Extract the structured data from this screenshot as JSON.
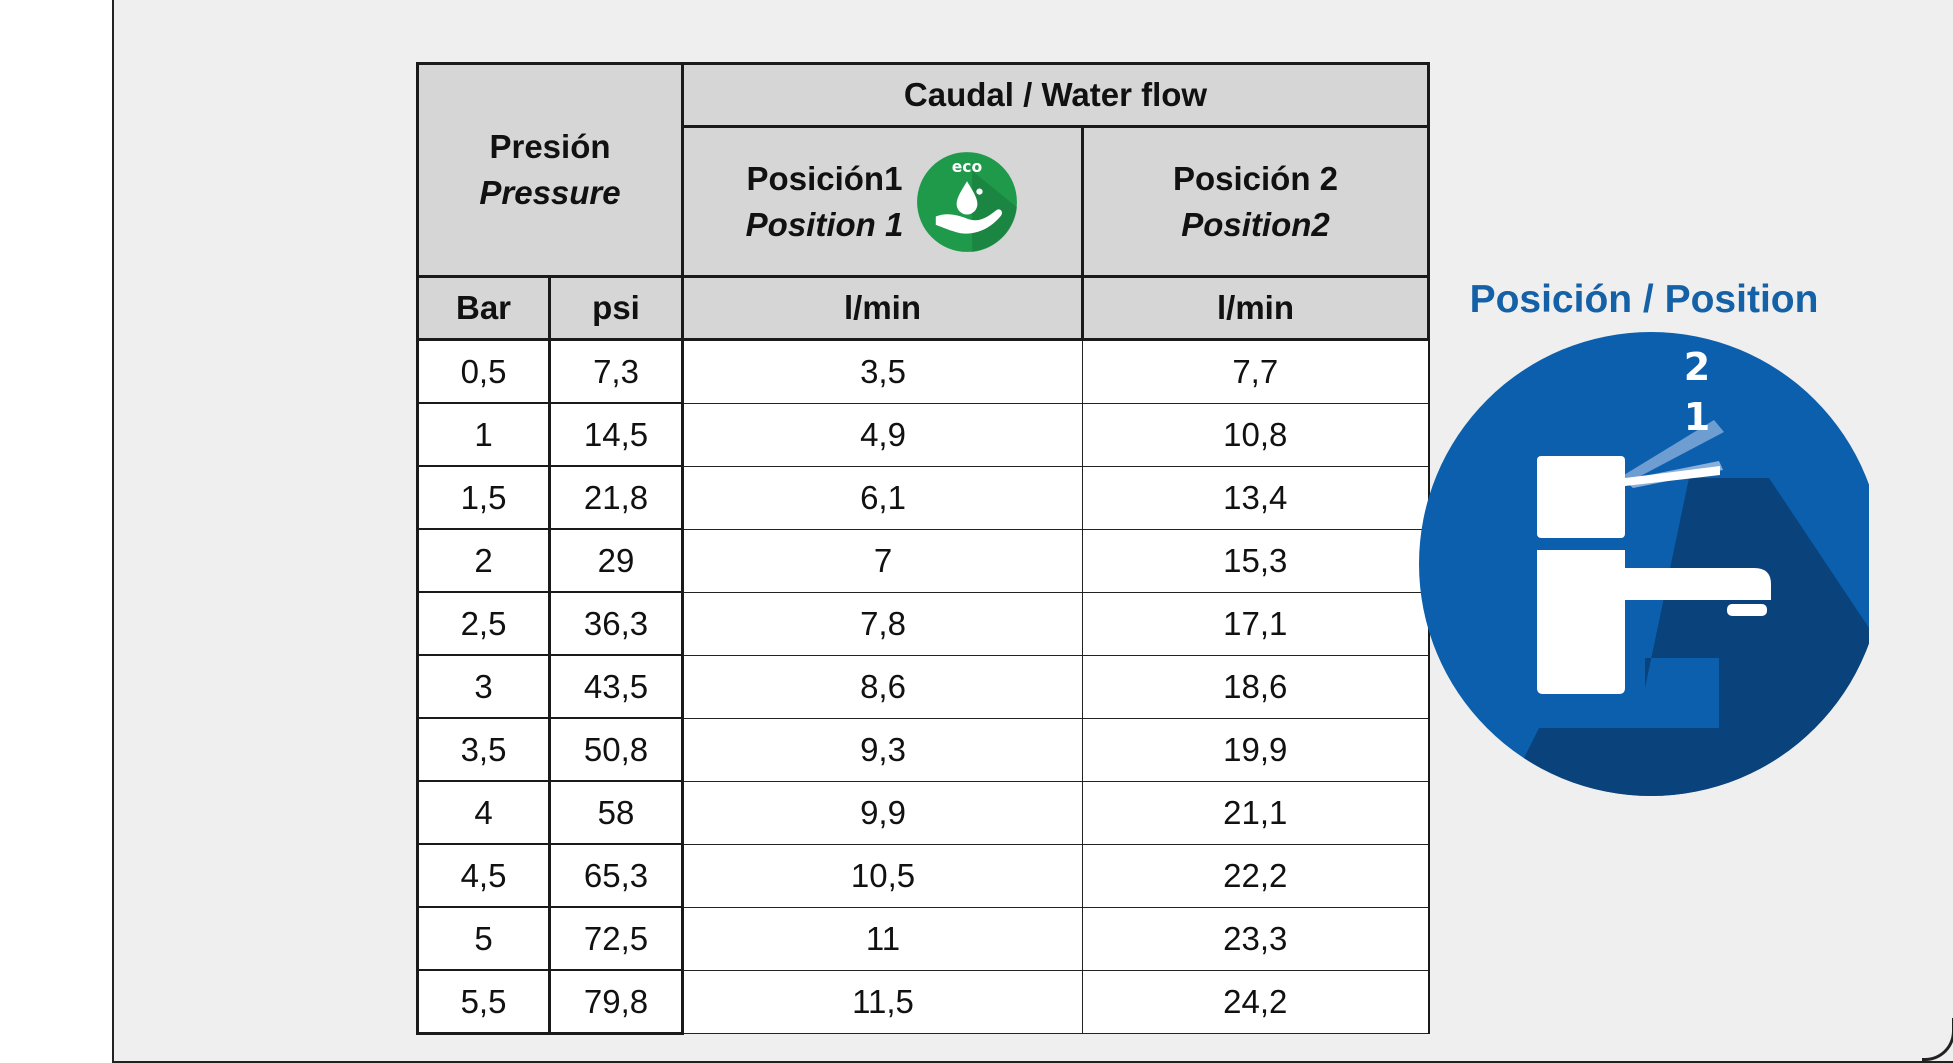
{
  "table": {
    "pressure_header": {
      "es": "Presión",
      "en": "Pressure"
    },
    "flow_header": "Caudal / Water flow",
    "position1_header": {
      "es": "Posición1",
      "en": "Position 1"
    },
    "position2_header": {
      "es": "Posición 2",
      "en": "Position2"
    },
    "eco_badge_text": "eco",
    "units": {
      "bar": "Bar",
      "psi": "psi",
      "flow1": "l/min",
      "flow2": "l/min"
    },
    "rows": [
      {
        "bar": "0,5",
        "psi": "7,3",
        "pos1": "3,5",
        "pos2": "7,7"
      },
      {
        "bar": "1",
        "psi": "14,5",
        "pos1": "4,9",
        "pos2": "10,8"
      },
      {
        "bar": "1,5",
        "psi": "21,8",
        "pos1": "6,1",
        "pos2": "13,4"
      },
      {
        "bar": "2",
        "psi": "29",
        "pos1": "7",
        "pos2": "15,3"
      },
      {
        "bar": "2,5",
        "psi": "36,3",
        "pos1": "7,8",
        "pos2": "17,1"
      },
      {
        "bar": "3",
        "psi": "43,5",
        "pos1": "8,6",
        "pos2": "18,6"
      },
      {
        "bar": "3,5",
        "psi": "50,8",
        "pos1": "9,3",
        "pos2": "19,9"
      },
      {
        "bar": "4",
        "psi": "58",
        "pos1": "9,9",
        "pos2": "21,1"
      },
      {
        "bar": "4,5",
        "psi": "65,3",
        "pos1": "10,5",
        "pos2": "22,2"
      },
      {
        "bar": "5",
        "psi": "72,5",
        "pos1": "11",
        "pos2": "23,3"
      },
      {
        "bar": "5,5",
        "psi": "79,8",
        "pos1": "11,5",
        "pos2": "24,2"
      }
    ]
  },
  "position_section": {
    "title": "Posición / Position",
    "label_2": "2",
    "label_1": "1"
  },
  "colors": {
    "header_bg": "#d6d6d6",
    "eco_green": "#1f9a4b",
    "circle_blue": "#0b5fad",
    "shadow_blue": "#0a3f75",
    "title_blue": "#1561a7"
  },
  "icons": [
    "eco-hand-drop-icon",
    "faucet-icon"
  ]
}
